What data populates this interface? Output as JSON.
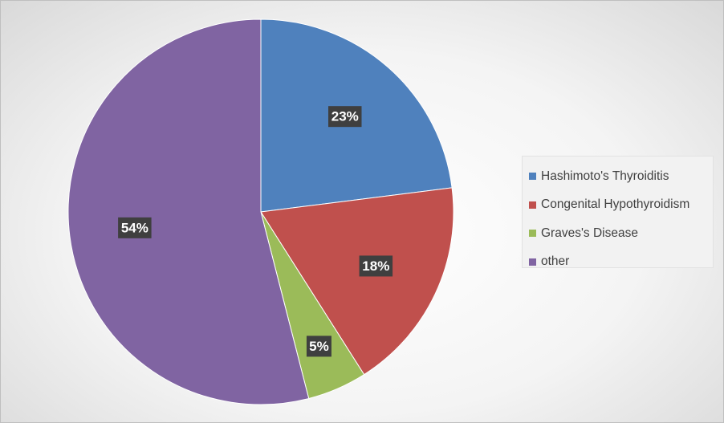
{
  "chart_data": {
    "type": "pie",
    "categories": [
      "Hashimoto's Thyroiditis",
      "Congenital Hypothyroidism",
      "Graves's Disease",
      "other"
    ],
    "values": [
      23,
      18,
      5,
      54
    ],
    "data_labels": [
      "23%",
      "18%",
      "5%",
      "54%"
    ],
    "colors": [
      "#4f81bd",
      "#c0504d",
      "#9bbb59",
      "#8064a2"
    ],
    "title": "",
    "legend_position": "right",
    "start_angle": "12 o'clock, clockwise"
  }
}
